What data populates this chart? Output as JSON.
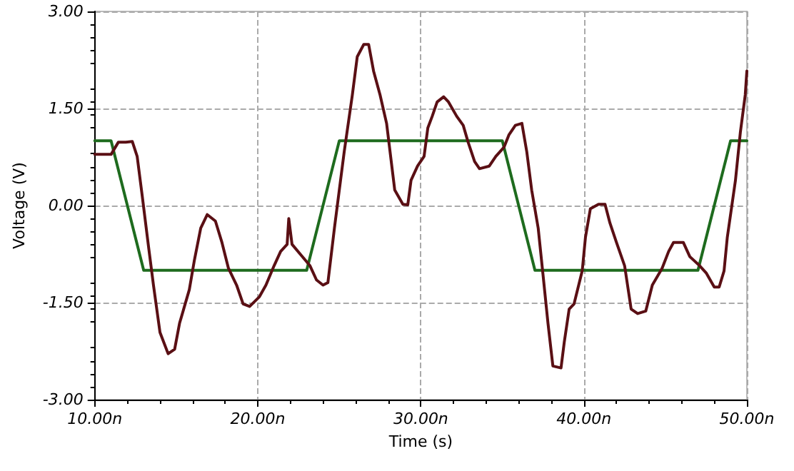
{
  "chart_data": {
    "type": "line",
    "xlabel": "Time (s)",
    "ylabel": "Voltage (V)",
    "xlim": [
      10,
      50
    ],
    "xticks": [
      {
        "value": 10,
        "label": "10.00n"
      },
      {
        "value": 20,
        "label": "20.00n"
      },
      {
        "value": 30,
        "label": "30.00n"
      },
      {
        "value": 40,
        "label": "40.00n"
      },
      {
        "value": 50,
        "label": "50.00n"
      }
    ],
    "ylim": [
      -3,
      3
    ],
    "yticks": [
      {
        "value": -3,
        "label": "-3.00"
      },
      {
        "value": -1.5,
        "label": "-1.50"
      },
      {
        "value": 0,
        "label": "0.00"
      },
      {
        "value": 1.5,
        "label": "1.50"
      },
      {
        "value": 3,
        "label": "3.00"
      }
    ],
    "grid": true,
    "marker": "none",
    "line_style": "solid",
    "series": [
      {
        "color": "#1e6b1e",
        "x": [
          10,
          11,
          13,
          23,
          25,
          35,
          37,
          47,
          49,
          50
        ],
        "values": [
          1,
          1,
          -1,
          -1,
          1,
          1,
          -1,
          -1,
          1,
          1
        ]
      },
      {
        "color": "#5a0f14",
        "x": [
          10,
          11,
          11.45,
          11.9,
          12.3,
          12.6,
          12.9,
          13.3,
          13.6,
          14.0,
          14.5,
          14.9,
          15.2,
          15.8,
          16.1,
          16.5,
          16.9,
          17.4,
          17.8,
          18.2,
          18.7,
          19.1,
          19.5,
          20.1,
          20.5,
          21.0,
          21.4,
          21.8,
          21.9,
          22.1,
          22.6,
          23.2,
          23.6,
          24.0,
          24.3,
          24.7,
          25.0,
          25.3,
          25.8,
          26.1,
          26.5,
          26.8,
          27.1,
          27.5,
          27.9,
          28.4,
          28.9,
          29.2,
          29.4,
          29.8,
          30.2,
          30.43,
          30.7,
          31.0,
          31.4,
          31.7,
          32.2,
          32.6,
          32.9,
          33.3,
          33.6,
          34.2,
          34.6,
          35.1,
          35.4,
          35.8,
          36.2,
          36.5,
          36.8,
          37.2,
          37.5,
          37.8,
          38.1,
          38.6,
          38.8,
          39.1,
          39.4,
          39.9,
          40.1,
          40.4,
          40.9,
          41.3,
          41.6,
          42.0,
          42.5,
          42.9,
          43.3,
          43.8,
          44.2,
          44.8,
          45.2,
          45.5,
          46.1,
          46.5,
          47.1,
          47.5,
          48.0,
          48.3,
          48.6,
          48.8,
          49.3,
          49.6,
          49.9,
          50
        ],
        "values": [
          0.79,
          0.79,
          0.98,
          0.98,
          0.99,
          0.76,
          0.17,
          -0.64,
          -1.23,
          -1.96,
          -2.29,
          -2.22,
          -1.82,
          -1.3,
          -0.86,
          -0.35,
          -0.14,
          -0.24,
          -0.57,
          -0.97,
          -1.23,
          -1.52,
          -1.56,
          -1.41,
          -1.23,
          -0.93,
          -0.71,
          -0.6,
          -0.2,
          -0.6,
          -0.75,
          -0.93,
          -1.15,
          -1.23,
          -1.19,
          -0.35,
          0.24,
          0.83,
          1.71,
          2.3,
          2.49,
          2.49,
          2.08,
          1.71,
          1.27,
          0.24,
          0.02,
          0.01,
          0.39,
          0.61,
          0.76,
          1.2,
          1.38,
          1.6,
          1.68,
          1.6,
          1.38,
          1.24,
          0.98,
          0.68,
          0.57,
          0.61,
          0.76,
          0.9,
          1.09,
          1.24,
          1.27,
          0.83,
          0.24,
          -0.35,
          -1.08,
          -1.82,
          -2.48,
          -2.51,
          -2.11,
          -1.6,
          -1.52,
          -1.01,
          -0.49,
          -0.05,
          0.02,
          0.02,
          -0.27,
          -0.57,
          -0.93,
          -1.6,
          -1.67,
          -1.63,
          -1.23,
          -0.97,
          -0.71,
          -0.57,
          -0.57,
          -0.79,
          -0.93,
          -1.04,
          -1.26,
          -1.26,
          -1.01,
          -0.49,
          0.39,
          1.13,
          1.71,
          2.08
        ]
      }
    ]
  }
}
